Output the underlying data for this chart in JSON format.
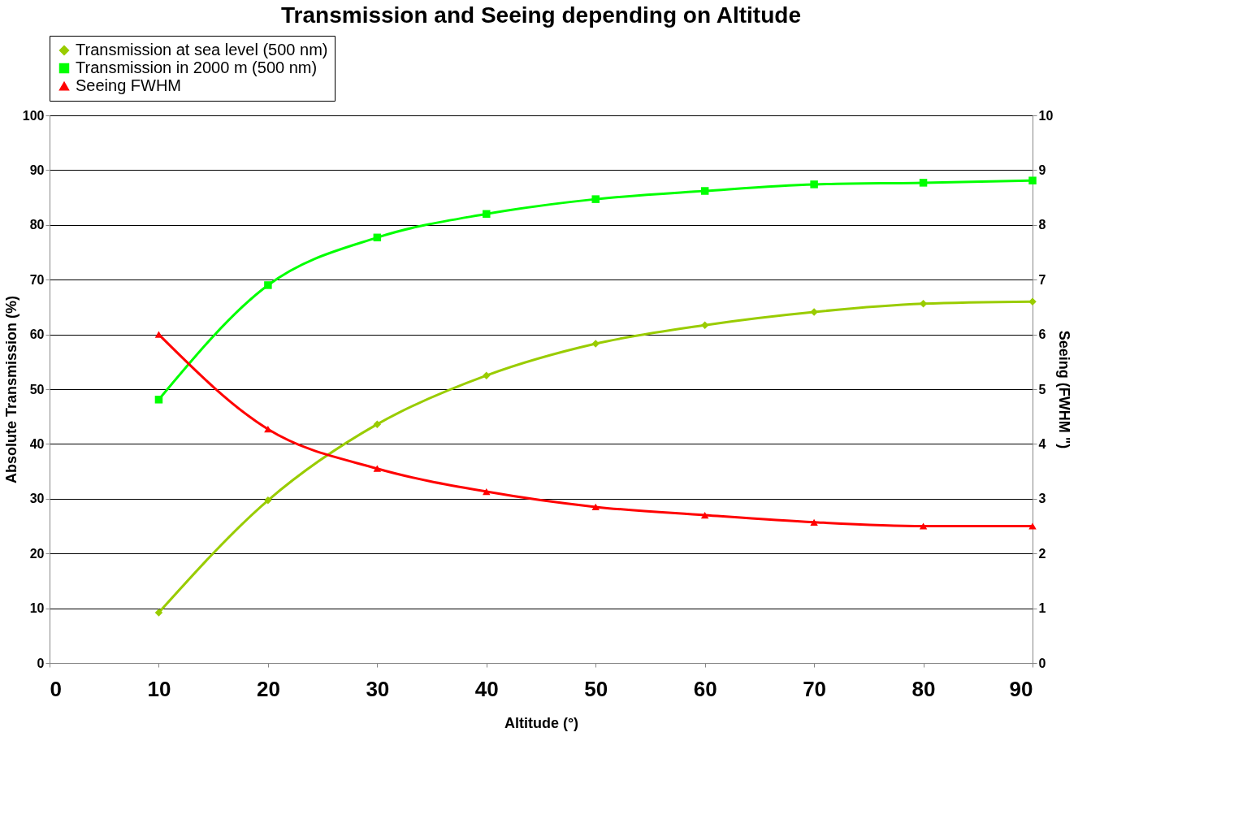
{
  "chart_data": {
    "type": "line",
    "title": "Transmission and Seeing depending on Altitude",
    "xlabel": "Altitude (°)",
    "ylabel": "Absolute Transmission (%)",
    "y2label": "Seeing (FWHM \")",
    "x": [
      10,
      20,
      30,
      40,
      50,
      60,
      70,
      80,
      90
    ],
    "series": [
      {
        "name": "Transmission at sea level (500 nm)",
        "color": "#99cc00",
        "marker": "diamond",
        "values": [
          9.2,
          29.7,
          43.6,
          52.5,
          58.3,
          61.7,
          64.1,
          65.6,
          66.0
        ]
      },
      {
        "name": "Transmission in 2000 m (500 nm)",
        "color": "#00ff00",
        "marker": "square",
        "values": [
          48.1,
          69.0,
          77.7,
          82.0,
          84.7,
          86.2,
          87.4,
          87.7,
          88.1
        ]
      },
      {
        "name": "Seeing FWHM",
        "color": "#ff0000",
        "marker": "triangle",
        "axis": "y2",
        "values": [
          6.0,
          4.27,
          3.55,
          3.13,
          2.85,
          2.7,
          2.57,
          2.5,
          2.5
        ]
      }
    ],
    "xlim": [
      0,
      90
    ],
    "xticks": [
      0,
      10,
      20,
      30,
      40,
      50,
      60,
      70,
      80,
      90
    ],
    "ylim": [
      0,
      100
    ],
    "yticks": [
      0,
      10,
      20,
      30,
      40,
      50,
      60,
      70,
      80,
      90,
      100
    ],
    "y2lim": [
      0,
      10
    ],
    "y2ticks": [
      0,
      1,
      2,
      3,
      4,
      5,
      6,
      7,
      8,
      9,
      10
    ],
    "grid": "y",
    "legend": "top"
  }
}
